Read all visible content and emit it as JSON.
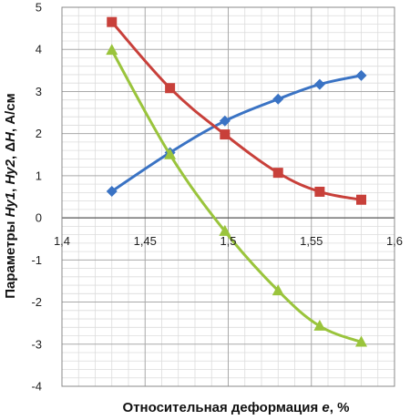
{
  "chart_data": {
    "type": "line",
    "title": "",
    "xlabel_parts": [
      {
        "text": "Относительная деформация ",
        "italic": false
      },
      {
        "text": "e",
        "italic": true
      },
      {
        "text": ", %",
        "italic": false
      }
    ],
    "ylabel_parts": [
      {
        "text": "Параметры ",
        "italic": false
      },
      {
        "text": "Hy1",
        "italic": true
      },
      {
        "text": ", ",
        "italic": false
      },
      {
        "text": "Hy2",
        "italic": true
      },
      {
        "text": ", Δ",
        "italic": false
      },
      {
        "text": "H",
        "italic": true
      },
      {
        "text": ", А/см",
        "italic": false
      }
    ],
    "xlim": [
      1.4,
      1.6
    ],
    "ylim": [
      -4,
      5
    ],
    "x_ticks": [
      1.4,
      1.45,
      1.5,
      1.55,
      1.6
    ],
    "x_tick_labels": [
      "1,4",
      "1,45",
      "1,5",
      "1,55",
      "1,6"
    ],
    "y_ticks": [
      -4,
      -3,
      -2,
      -1,
      0,
      1,
      2,
      3,
      4,
      5
    ],
    "y_tick_labels": [
      "-4",
      "-3",
      "-2",
      "-1",
      "0",
      "1",
      "2",
      "3",
      "4",
      "5"
    ],
    "minor_grid_divisions_x": 5,
    "minor_grid_divisions_y": 5,
    "grid": true,
    "legend": "none",
    "x": [
      1.43,
      1.465,
      1.498,
      1.53,
      1.555,
      1.58
    ],
    "series": [
      {
        "color": "#3a73c4",
        "marker": "diamond",
        "values": [
          0.63,
          1.55,
          2.3,
          2.82,
          3.17,
          3.38
        ]
      },
      {
        "color": "#c8403a",
        "marker": "square",
        "values": [
          4.65,
          3.08,
          1.98,
          1.07,
          0.62,
          0.43
        ]
      },
      {
        "color": "#9ac43c",
        "marker": "triangle",
        "values": [
          3.98,
          1.5,
          -0.32,
          -1.73,
          -2.57,
          -2.95
        ]
      }
    ]
  }
}
